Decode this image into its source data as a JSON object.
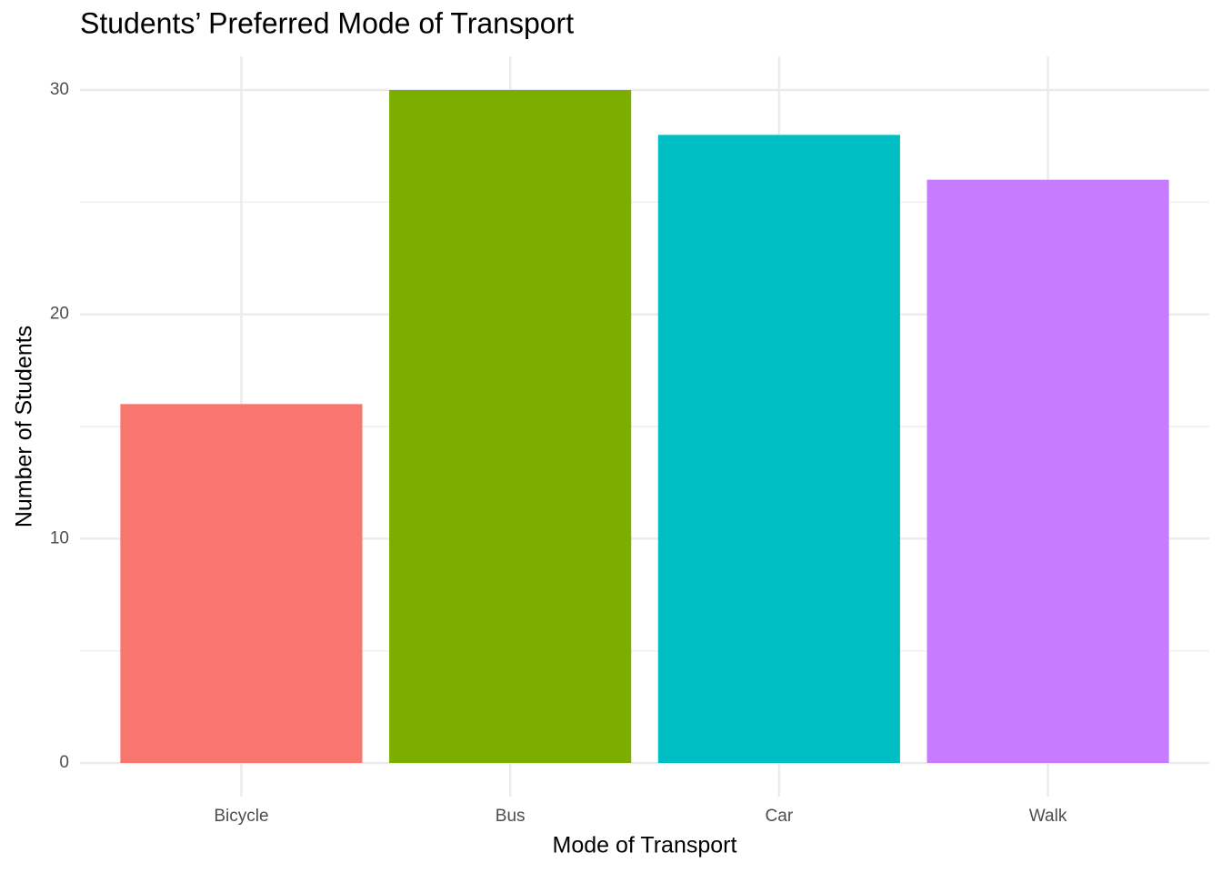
{
  "chart_data": {
    "type": "bar",
    "title": "Students’ Preferred Mode of Transport",
    "x_label": "Mode of Transport",
    "y_label": "Number of Students",
    "categories": [
      "Bicycle",
      "Bus",
      "Car",
      "Walk"
    ],
    "values": [
      16,
      30,
      28,
      26
    ],
    "colors": [
      "#f8766d",
      "#7cae00",
      "#00bfc4",
      "#c77cff"
    ],
    "ylim": [
      -1.5,
      31.5
    ],
    "yticks": [
      0,
      10,
      20,
      30
    ],
    "yminor": [
      5,
      15,
      25
    ],
    "grid": true
  }
}
